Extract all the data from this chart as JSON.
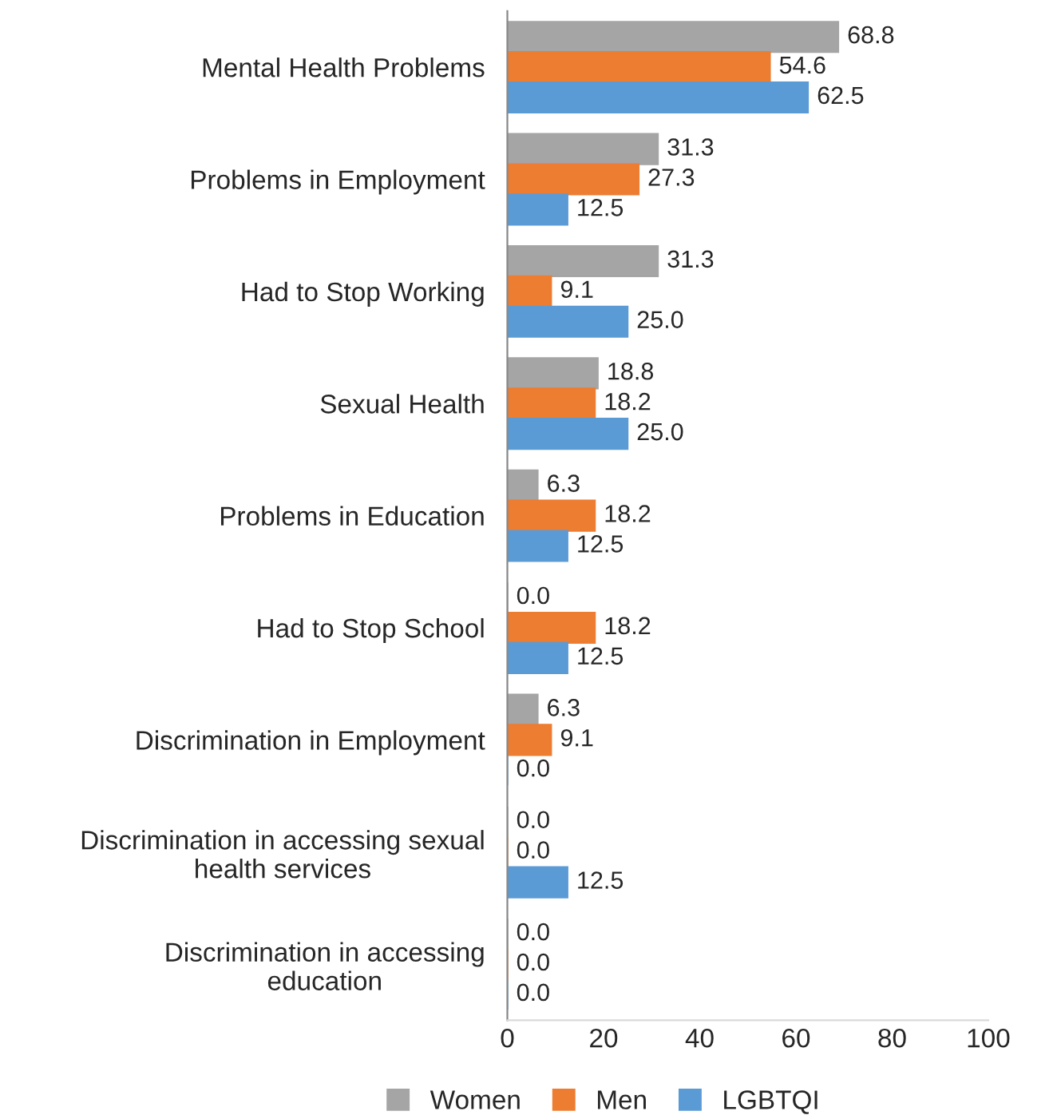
{
  "chart_data": {
    "type": "bar",
    "orientation": "horizontal",
    "categories": [
      "Mental Health Problems",
      "Problems in Employment",
      "Had to Stop Working",
      "Sexual Health",
      "Problems in Education",
      "Had to Stop School",
      "Discrimination in Employment",
      "Discrimination in accessing sexual\nhealth services",
      "Discrimination in accessing\neducation"
    ],
    "series": [
      {
        "name": "Women",
        "color": "#a5a5a5",
        "values": [
          68.8,
          31.3,
          31.3,
          18.8,
          6.3,
          0.0,
          6.3,
          0.0,
          0.0
        ],
        "value_labels": [
          "68.8",
          "31.3",
          "31.3",
          "18.8",
          "6.3",
          "0.0",
          "6.3",
          "0.0",
          "0.0"
        ]
      },
      {
        "name": "Men",
        "color": "#ed7d31",
        "values": [
          54.6,
          27.3,
          9.1,
          18.2,
          18.2,
          18.2,
          9.1,
          0.0,
          0.0
        ],
        "value_labels": [
          "54.6",
          "27.3",
          "9.1",
          "18.2",
          "18.2",
          "18.2",
          "9.1",
          "0.0",
          "0.0"
        ]
      },
      {
        "name": "LGBTQI",
        "color": "#5b9bd5",
        "values": [
          62.5,
          12.5,
          25.0,
          25.0,
          12.5,
          12.5,
          0.0,
          12.5,
          0.0
        ],
        "value_labels": [
          "62.5",
          "12.5",
          "25.0",
          "25.0",
          "12.5",
          "12.5",
          "0.0",
          "12.5",
          "0.0"
        ]
      }
    ],
    "xlim": [
      0,
      100
    ],
    "xticks": [
      0,
      20,
      40,
      60,
      80,
      100
    ],
    "grid": false,
    "legend": "bottom"
  }
}
